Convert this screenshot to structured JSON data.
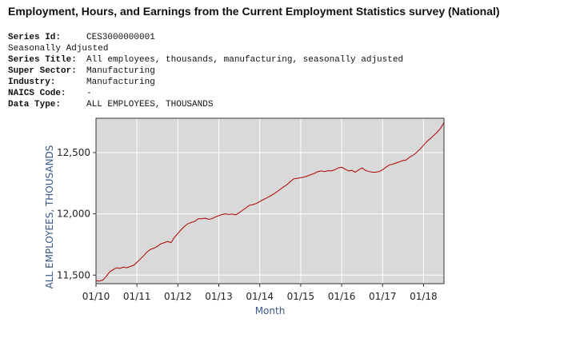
{
  "page_title": "Employment, Hours, and Earnings from the Current Employment Statistics survey (National)",
  "metadata": [
    {
      "label": "Series Id:",
      "value": "CES3000000001"
    },
    {
      "label": "",
      "value": "Seasonally Adjusted"
    },
    {
      "label": "Series Title:",
      "value": "All employees, thousands, manufacturing, seasonally adjusted"
    },
    {
      "label": "Super Sector:",
      "value": "Manufacturing"
    },
    {
      "label": "Industry:",
      "value": "Manufacturing"
    },
    {
      "label": "NAICS Code:",
      "value": "-"
    },
    {
      "label": "Data Type:",
      "value": "ALL EMPLOYEES, THOUSANDS"
    }
  ],
  "chart_data": {
    "type": "line",
    "title": "",
    "xlabel": "Month",
    "ylabel": "ALL EMPLOYEES,  THOUSANDS",
    "x_ticks": [
      "01/10",
      "01/11",
      "01/12",
      "01/13",
      "01/14",
      "01/15",
      "01/16",
      "01/17",
      "01/18"
    ],
    "y_ticks": [
      "11,500",
      "12,000",
      "12,500"
    ],
    "y_tick_values": [
      11500,
      12000,
      12500
    ],
    "xlim": [
      2010.0,
      2018.5
    ],
    "ylim": [
      11430,
      12780
    ],
    "grid": true,
    "plot_background": "#d9d9d9",
    "line_color": "#b00000",
    "series": [
      {
        "name": "All employees, thousands, manufacturing",
        "x": [
          2010.0,
          2010.08,
          2010.17,
          2010.25,
          2010.33,
          2010.42,
          2010.5,
          2010.58,
          2010.67,
          2010.75,
          2010.83,
          2010.92,
          2011.0,
          2011.08,
          2011.17,
          2011.25,
          2011.33,
          2011.42,
          2011.5,
          2011.58,
          2011.67,
          2011.75,
          2011.83,
          2011.92,
          2012.0,
          2012.08,
          2012.17,
          2012.25,
          2012.33,
          2012.42,
          2012.5,
          2012.58,
          2012.67,
          2012.75,
          2012.83,
          2012.92,
          2013.0,
          2013.08,
          2013.17,
          2013.25,
          2013.33,
          2013.42,
          2013.5,
          2013.58,
          2013.67,
          2013.75,
          2013.83,
          2013.92,
          2014.0,
          2014.08,
          2014.17,
          2014.25,
          2014.33,
          2014.42,
          2014.5,
          2014.58,
          2014.67,
          2014.75,
          2014.83,
          2014.92,
          2015.0,
          2015.08,
          2015.17,
          2015.25,
          2015.33,
          2015.42,
          2015.5,
          2015.58,
          2015.67,
          2015.75,
          2015.83,
          2015.92,
          2016.0,
          2016.08,
          2016.17,
          2016.25,
          2016.33,
          2016.42,
          2016.5,
          2016.58,
          2016.67,
          2016.75,
          2016.83,
          2016.92,
          2017.0,
          2017.08,
          2017.17,
          2017.25,
          2017.33,
          2017.42,
          2017.5,
          2017.58,
          2017.67,
          2017.75,
          2017.83,
          2017.92,
          2018.0,
          2018.08,
          2018.17,
          2018.25,
          2018.33,
          2018.42,
          2018.5
        ],
        "values": [
          11455,
          11450,
          11460,
          11490,
          11525,
          11545,
          11560,
          11555,
          11565,
          11560,
          11570,
          11580,
          11605,
          11630,
          11660,
          11690,
          11710,
          11720,
          11735,
          11755,
          11765,
          11775,
          11765,
          11810,
          11840,
          11870,
          11900,
          11920,
          11930,
          11940,
          11960,
          11960,
          11965,
          11955,
          11960,
          11975,
          11985,
          11995,
          12000,
          11995,
          11998,
          11992,
          12010,
          12030,
          12050,
          12070,
          12075,
          12085,
          12100,
          12115,
          12130,
          12145,
          12160,
          12180,
          12200,
          12220,
          12240,
          12265,
          12285,
          12290,
          12295,
          12300,
          12310,
          12320,
          12330,
          12345,
          12350,
          12345,
          12352,
          12350,
          12360,
          12375,
          12380,
          12365,
          12350,
          12355,
          12340,
          12360,
          12375,
          12355,
          12345,
          12340,
          12340,
          12345,
          12360,
          12380,
          12400,
          12405,
          12415,
          12425,
          12435,
          12440,
          12465,
          12480,
          12500,
          12530,
          12560,
          12590,
          12615,
          12640,
          12665,
          12700,
          12745
        ]
      }
    ]
  }
}
